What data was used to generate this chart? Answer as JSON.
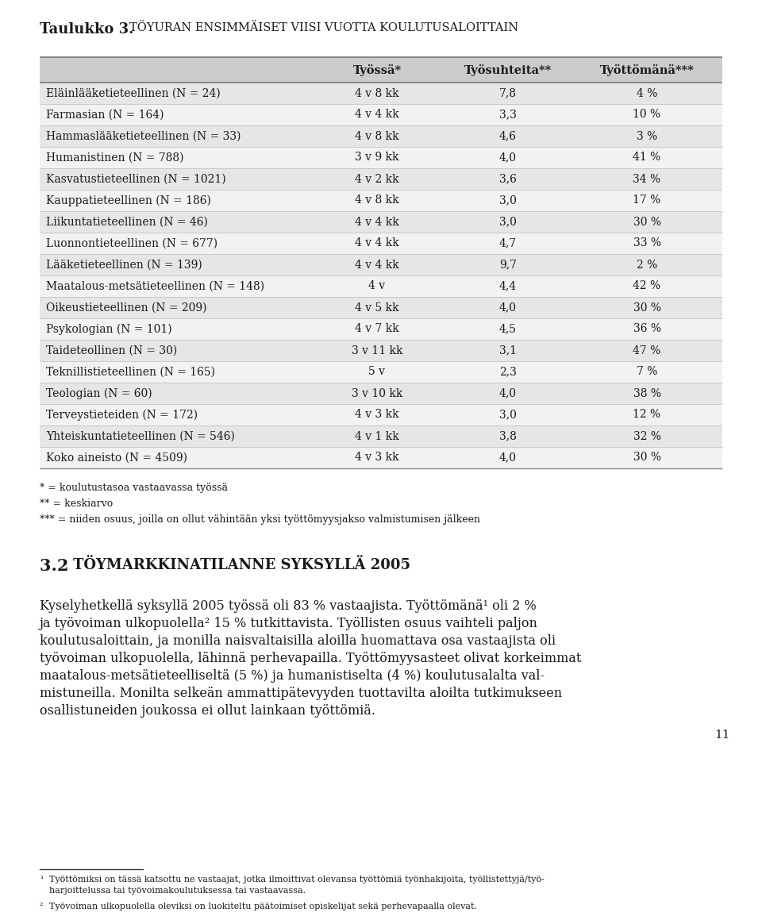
{
  "col_headers": [
    "Työssä*",
    "Työsuhteita**",
    "Työttömänä***"
  ],
  "rows": [
    [
      "Eläinlääketieteellinen (N = 24)",
      "4 v 8 kk",
      "7,8",
      "4 %"
    ],
    [
      "Farmasian (N = 164)",
      "4 v 4 kk",
      "3,3",
      "10 %"
    ],
    [
      "Hammaslääketieteellinen (N = 33)",
      "4 v 8 kk",
      "4,6",
      "3 %"
    ],
    [
      "Humanistinen (N = 788)",
      "3 v 9 kk",
      "4,0",
      "41 %"
    ],
    [
      "Kasvatustieteellinen (N = 1021)",
      "4 v 2 kk",
      "3,6",
      "34 %"
    ],
    [
      "Kauppatieteellinen (N = 186)",
      "4 v 8 kk",
      "3,0",
      "17 %"
    ],
    [
      "Liikuntatieteellinen (N = 46)",
      "4 v 4 kk",
      "3,0",
      "30 %"
    ],
    [
      "Luonnontieteellinen (N = 677)",
      "4 v 4 kk",
      "4,7",
      "33 %"
    ],
    [
      "Lääketieteellinen (N = 139)",
      "4 v 4 kk",
      "9,7",
      "2 %"
    ],
    [
      "Maatalous-metsätieteellinen (N = 148)",
      "4 v",
      "4,4",
      "42 %"
    ],
    [
      "Oikeustieteellinen (N = 209)",
      "4 v 5 kk",
      "4,0",
      "30 %"
    ],
    [
      "Psykologian (N = 101)",
      "4 v 7 kk",
      "4,5",
      "36 %"
    ],
    [
      "Taideteollinen (N = 30)",
      "3 v 11 kk",
      "3,1",
      "47 %"
    ],
    [
      "Teknillistieteellinen (N = 165)",
      "5 v",
      "2,3",
      "7 %"
    ],
    [
      "Teologian (N = 60)",
      "3 v 10 kk",
      "4,0",
      "38 %"
    ],
    [
      "Terveystieteiden (N = 172)",
      "4 v 3 kk",
      "3,0",
      "12 %"
    ],
    [
      "Yhteiskuntatieteellinen (N = 546)",
      "4 v 1 kk",
      "3,8",
      "32 %"
    ],
    [
      "Koko aineisto (N = 4509)",
      "4 v 3 kk",
      "4,0",
      "30 %"
    ]
  ],
  "footnotes": [
    "* = koulutustasoa vastaavassa työssä",
    "** = keskiarvo",
    "*** = niiden osuus, joilla on ollut vähintään yksi työttömyysjakso valmistumisen jälkeen"
  ],
  "body_lines": [
    "Kyselyhetkellä syksyllä 2005 työssä oli 83 % vastaajista. Työttömänä¹ oli 2 %",
    "ja työvoiman ulkopuolella² 15 % tutkittavista. Työllisten osuus vaihteli paljon",
    "koulutusaloittain, ja monilla naisvaltaisilla aloilla huomattava osa vastaajista oli",
    "työvoiman ulkopuolella, lähinnä perhevapailla. Työttömyysasteet olivat korkeimmat",
    "maatalous-metsätieteelliseltä (5 %) ja humanistiselta (4 %) koulutusalalta val-",
    "mistuneilla. Monilta selkeän ammattipätevyyden tuottavilta aloilta tutkimukseen",
    "osallistuneiden joukossa ei ollut lainkaan työttömiä."
  ],
  "footnote1": "Työttömiksi on tässä katsottu ne vastaajat, jotka ilmoittivat olevansa työttömiä työnhakijoita, työllistettyjä/työ-",
  "footnote1b": "harjoittelussa tai työvoimakoulutuksessa tai vastaavassa.",
  "footnote2": "Työvoiman ulkopuolella oleviksi on luokiteltu päätoimiset opiskelijat sekä perhevapaalla olevat.",
  "page_number": "11",
  "bg_color": "#ffffff",
  "row_shaded_color": "#e6e6e6",
  "row_white_color": "#f2f2f2",
  "header_bg_color": "#cccccc",
  "text_color": "#1a1a1a"
}
